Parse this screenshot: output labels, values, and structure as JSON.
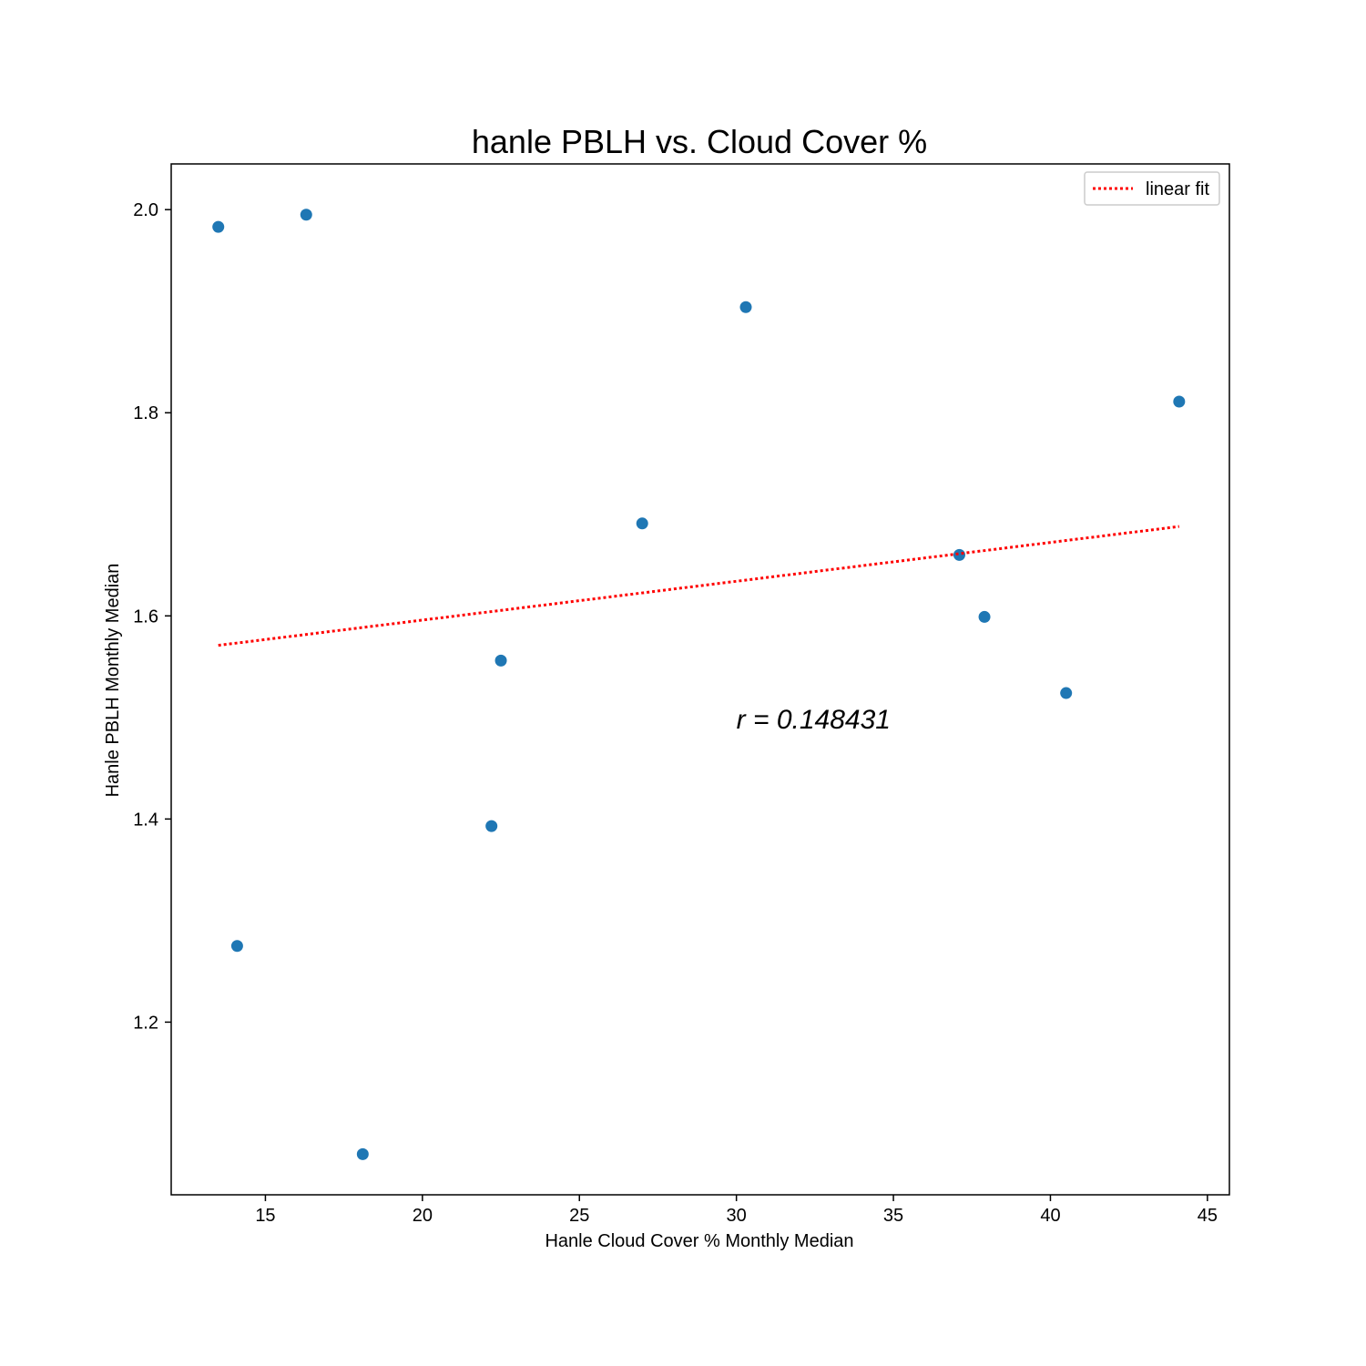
{
  "chart_data": {
    "type": "scatter",
    "title": "hanle PBLH vs. Cloud Cover %",
    "xlabel": "Hanle Cloud Cover % Monthly Median",
    "ylabel": "Hanle PBLH Monthly Median",
    "xlim": [
      12,
      45.7
    ],
    "ylim": [
      1.03,
      2.045
    ],
    "xticks": [
      15,
      20,
      25,
      30,
      35,
      40,
      45
    ],
    "yticks": [
      1.2,
      1.4,
      1.6,
      1.8,
      2.0
    ],
    "ytick_labels": [
      "1.2",
      "1.4",
      "1.6",
      "1.8",
      "2.0"
    ],
    "grid": false,
    "legend_position": "top-right",
    "series": [
      {
        "kind": "scatter",
        "color": "#1f77b4",
        "x": [
          13.5,
          14.1,
          16.3,
          18.1,
          22.2,
          22.5,
          27.0,
          30.3,
          37.1,
          37.9,
          40.5,
          44.1
        ],
        "y": [
          1.983,
          1.275,
          1.995,
          1.07,
          1.393,
          1.556,
          1.691,
          1.904,
          1.66,
          1.599,
          1.524,
          1.811
        ]
      },
      {
        "kind": "line",
        "name": "linear fit",
        "color": "#ff0000",
        "style": "dotted",
        "x": [
          13.5,
          44.1
        ],
        "y": [
          1.571,
          1.688
        ]
      }
    ],
    "annotations": [
      {
        "text": "r = 0.148431",
        "x": 30.0,
        "y": 1.5
      }
    ]
  }
}
